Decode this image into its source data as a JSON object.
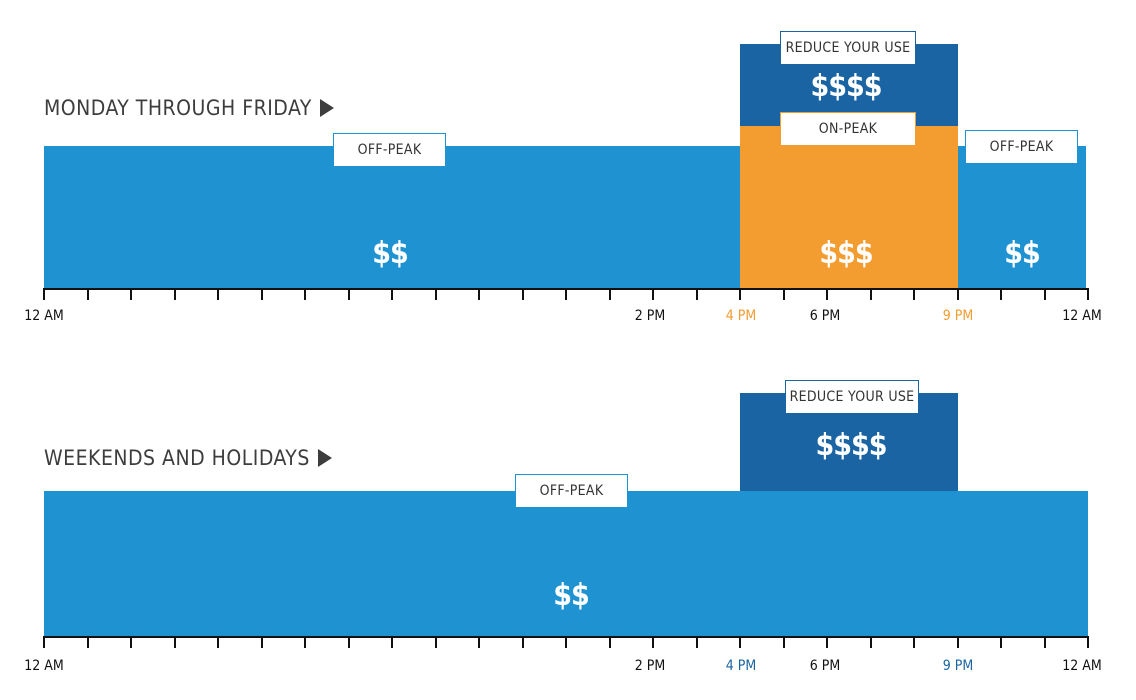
{
  "colors": {
    "offpeak": "#1f93d2",
    "reduce": "#1b64a3",
    "onpeak": "#f39c30",
    "text": "#3d3d3d"
  },
  "weekday": {
    "title": "MONDAY THROUGH FRIDAY",
    "offpeak_label": "OFF-PEAK",
    "offpeak_price": "$$",
    "reduce_label": "REDUCE YOUR USE",
    "reduce_price": "$$$$",
    "onpeak_label": "ON-PEAK",
    "onpeak_price": "$$$",
    "offpeak_late_label": "OFF-PEAK",
    "offpeak_late_price": "$$",
    "ticks": [
      "12 AM",
      "2 PM",
      "4 PM",
      "6 PM",
      "9 PM",
      "12 AM"
    ]
  },
  "weekend": {
    "title": "WEEKENDS AND HOLIDAYS",
    "offpeak_label": "OFF-PEAK",
    "offpeak_price": "$$",
    "reduce_label": "REDUCE YOUR USE",
    "reduce_price": "$$$$",
    "ticks": [
      "12 AM",
      "2 PM",
      "4 PM",
      "6 PM",
      "9 PM",
      "12 AM"
    ]
  }
}
